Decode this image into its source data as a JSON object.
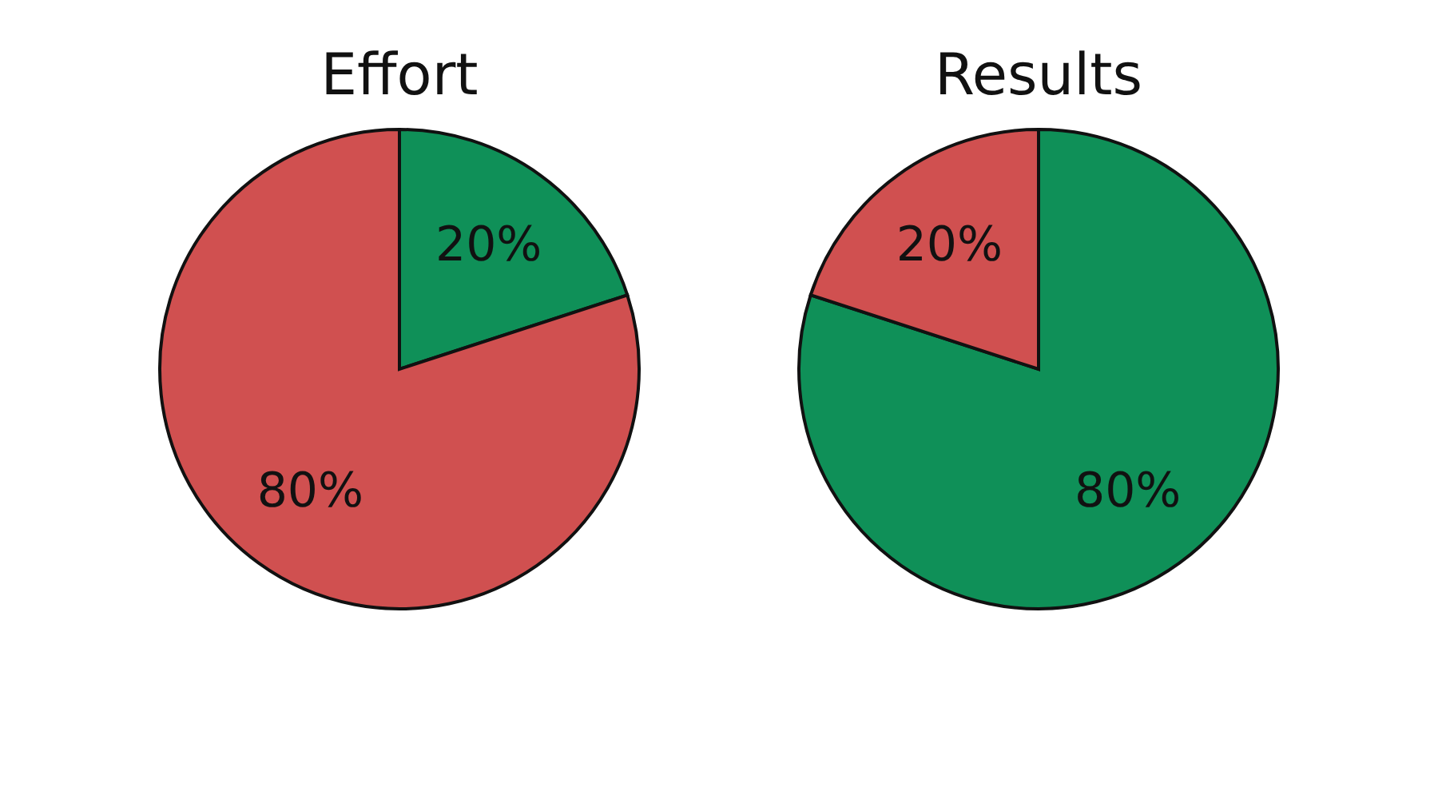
{
  "chart_data": [
    {
      "type": "pie",
      "title": "Effort",
      "categories": [
        null,
        null
      ],
      "values": [
        20,
        80
      ],
      "colors": [
        "#0f9058",
        "#d05050"
      ],
      "value_labels": [
        "20%",
        "80%"
      ]
    },
    {
      "type": "pie",
      "title": "Results",
      "categories": [
        null,
        null
      ],
      "values": [
        80,
        20
      ],
      "colors": [
        "#0f9058",
        "#d05050"
      ],
      "value_labels": [
        "80%",
        "20%"
      ]
    }
  ]
}
